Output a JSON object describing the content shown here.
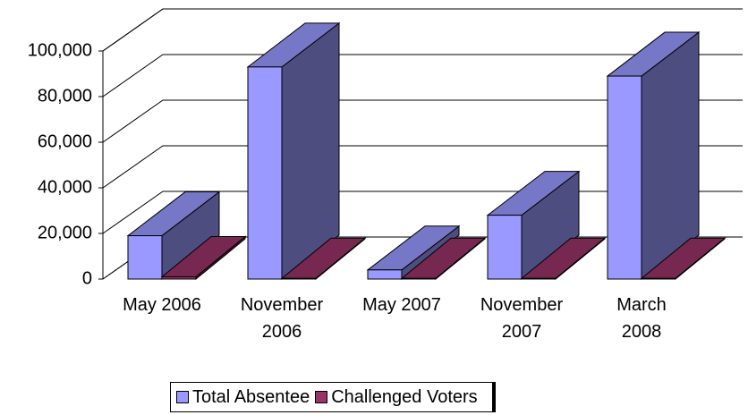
{
  "chart_data": {
    "type": "bar3d",
    "categories": [
      "May 2006",
      "November 2006",
      "May 2007",
      "November 2007",
      "March 2008"
    ],
    "series": [
      {
        "name": "Total Absentee",
        "color": "#9999ff",
        "values": [
          19000,
          93000,
          4000,
          28000,
          89000
        ]
      },
      {
        "name": "Challenged Voters",
        "color": "#993366",
        "values": [
          1000,
          300,
          300,
          300,
          300
        ]
      }
    ],
    "ylim": [
      0,
      100000
    ],
    "yticks": [
      0,
      {
        "value": 20000,
        "label": "20,000"
      },
      {
        "value": 40000,
        "label": "40,000"
      },
      {
        "value": 60000,
        "label": "60,000"
      },
      {
        "value": 80000,
        "label": "80,000"
      },
      {
        "value": 100000,
        "label": "100,000"
      }
    ],
    "grid": true,
    "legend": "bottom"
  }
}
